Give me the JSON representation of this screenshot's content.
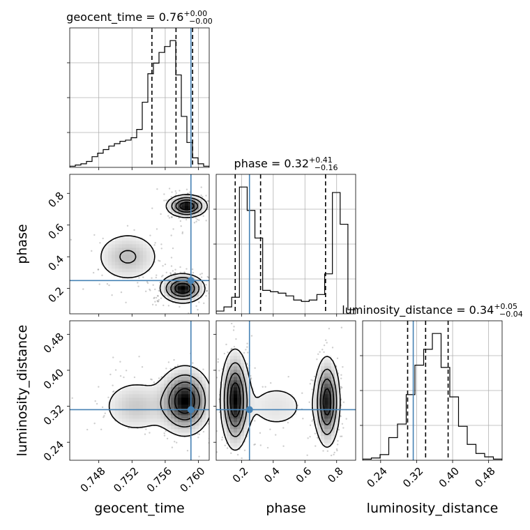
{
  "chart_data": {
    "type": "corner",
    "truth_color": "#4682b4",
    "parameters": [
      {
        "name": "geocent_time",
        "axis_label": "geocent_time",
        "title_prefix": "geocent_time = 0.76",
        "title_plus": "+0.00",
        "title_minus": "−0.00",
        "range": [
          0.7445,
          0.7613
        ],
        "ticks": [
          0.748,
          0.752,
          0.756,
          0.76
        ],
        "tick_labels": [
          "0.748",
          "0.752",
          "0.756",
          "0.760"
        ],
        "quantiles": [
          0.7544,
          0.7573,
          0.7593
        ],
        "truth": 0.7591,
        "hist_counts": [
          1,
          2,
          3,
          5,
          9,
          12,
          15,
          18,
          20,
          22,
          23,
          25,
          32,
          55,
          79,
          88,
          97,
          102,
          107,
          78,
          43,
          21,
          8,
          3,
          1
        ]
      },
      {
        "name": "phase",
        "axis_label": "phase",
        "title_prefix": "phase = 0.32",
        "title_plus": "+0.41",
        "title_minus": "−0.16",
        "range": [
          0.04,
          0.92
        ],
        "ticks": [
          0.2,
          0.4,
          0.6,
          0.8
        ],
        "tick_labels": [
          "0.2",
          "0.4",
          "0.6",
          "0.8"
        ],
        "quantiles": [
          0.16,
          0.32,
          0.73
        ],
        "truth": 0.25,
        "hist_counts": [
          2,
          5,
          12,
          92,
          75,
          55,
          17,
          16,
          15,
          13,
          10,
          9,
          10,
          14,
          29,
          88,
          65,
          3
        ]
      },
      {
        "name": "luminosity_distance",
        "axis_label": "luminosity_distance",
        "title_prefix": "luminosity_distance = 0.34",
        "title_plus": "+0.05",
        "title_minus": "−0.04",
        "range": [
          0.2,
          0.51
        ],
        "ticks": [
          0.24,
          0.32,
          0.4,
          0.48
        ],
        "tick_labels": [
          "0.24",
          "0.32",
          "0.40",
          "0.48"
        ],
        "quantiles": [
          0.3,
          0.34,
          0.39
        ],
        "truth": 0.3125,
        "hist_counts": [
          1,
          2,
          5,
          20,
          32,
          58,
          84,
          98,
          112,
          82,
          56,
          30,
          14,
          6,
          3,
          1
        ]
      }
    ],
    "pairs": [
      {
        "x": "geocent_time",
        "y": "phase",
        "modes": [
          {
            "cx": 0.7586,
            "cy": 0.72,
            "sx": 0.0012,
            "sy": 0.035,
            "w": 1.0
          },
          {
            "cx": 0.7581,
            "cy": 0.2,
            "sx": 0.0013,
            "sy": 0.045,
            "w": 1.0
          },
          {
            "cx": 0.7515,
            "cy": 0.4,
            "sx": 0.0022,
            "sy": 0.09,
            "w": 0.35
          }
        ]
      },
      {
        "x": "geocent_time",
        "y": "luminosity_distance",
        "modes": [
          {
            "cx": 0.7584,
            "cy": 0.332,
            "sx": 0.0016,
            "sy": 0.038,
            "w": 1.0
          },
          {
            "cx": 0.7525,
            "cy": 0.32,
            "sx": 0.0024,
            "sy": 0.035,
            "w": 0.3
          }
        ]
      },
      {
        "x": "phase",
        "y": "luminosity_distance",
        "modes": [
          {
            "cx": 0.16,
            "cy": 0.335,
            "sx": 0.045,
            "sy": 0.055,
            "w": 1.0
          },
          {
            "cx": 0.74,
            "cy": 0.33,
            "sx": 0.04,
            "sy": 0.05,
            "w": 0.95
          },
          {
            "cx": 0.42,
            "cy": 0.32,
            "sx": 0.15,
            "sy": 0.04,
            "w": 0.18
          }
        ]
      }
    ]
  }
}
